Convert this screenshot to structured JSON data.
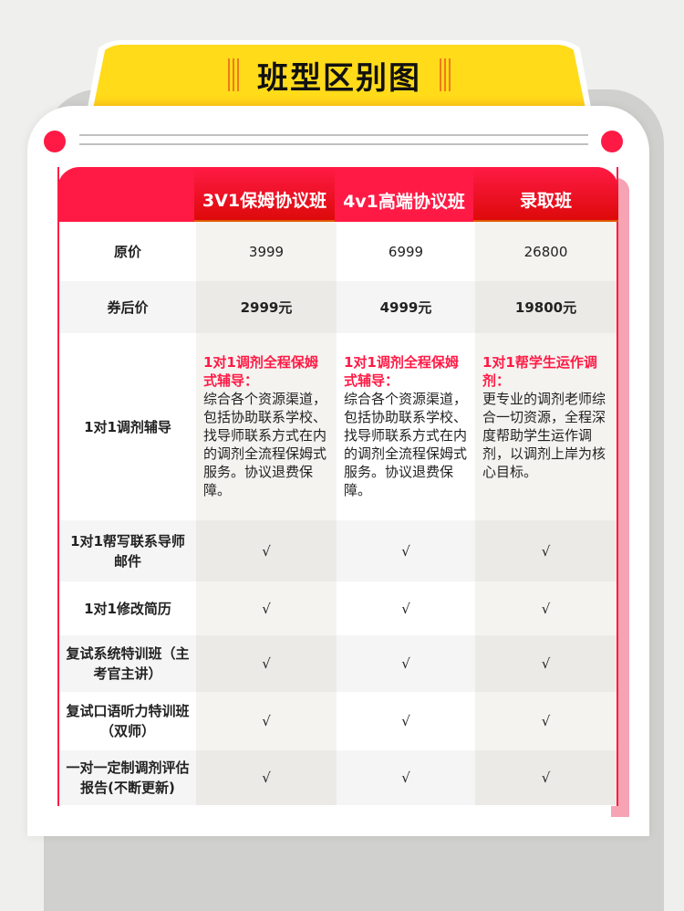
{
  "title": "班型区别图",
  "columns": [
    "3V1保姆协议班",
    "4v1高端协议班",
    "录取班"
  ],
  "rows": [
    {
      "label": "原价",
      "values": [
        "3999",
        "6999",
        "26800"
      ]
    },
    {
      "label": "券后价",
      "values": [
        "2999元",
        "4999元",
        "19800元"
      ]
    },
    {
      "label": "1对1调剂辅导",
      "details": [
        {
          "highlight": "1对1调剂全程保姆式辅导：",
          "text": "综合各个资源渠道，包括协助联系学校、找导师联系方式在内的调剂全流程保姆式服务。协议退费保障。"
        },
        {
          "highlight": "1对1调剂全程保姆式辅导：",
          "text": "综合各个资源渠道，包括协助联系学校、找导师联系方式在内的调剂全流程保姆式服务。协议退费保障。"
        },
        {
          "highlight": "1对1帮学生运作调剂：",
          "text": "更专业的调剂老师综合一切资源，全程深度帮助学生运作调剂，以调剂上岸为核心目标。"
        }
      ]
    },
    {
      "label": "1对1帮写联系导师邮件",
      "values": [
        "√",
        "√",
        "√"
      ]
    },
    {
      "label": "1对1修改简历",
      "values": [
        "√",
        "√",
        "√"
      ]
    },
    {
      "label": "复试系统特训班（主考官主讲）",
      "values": [
        "√",
        "√",
        "√"
      ]
    },
    {
      "label": "复试口语听力特训班（双师）",
      "values": [
        "√",
        "√",
        "√"
      ]
    },
    {
      "label": "一对一定制调剂评估报告(不断更新)",
      "values": [
        "√",
        "√",
        "√"
      ]
    }
  ],
  "colors": {
    "accent": "#ff1a45",
    "banner": "#ffdb1a"
  }
}
